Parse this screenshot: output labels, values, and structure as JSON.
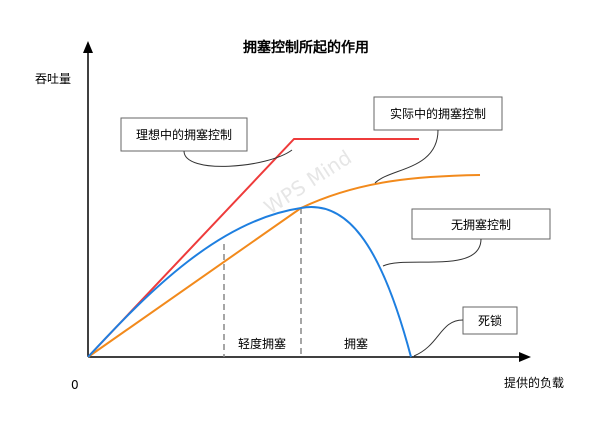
{
  "title": "拥塞控制所起的作用",
  "axes": {
    "y_label": "吞吐量",
    "x_label": "提供的负载",
    "origin_label": "0"
  },
  "callouts": {
    "ideal": "理想中的拥塞控制",
    "actual": "实际中的拥塞控制",
    "none": "无拥塞控制",
    "deadlock": "死锁"
  },
  "regions": {
    "light": "轻度拥塞",
    "congested": "拥塞"
  },
  "watermark": "WPS Mind",
  "colors": {
    "ideal": "#ee3b3b",
    "actual": "#f28a1c",
    "none": "#1e7fe0",
    "axis": "#000000",
    "guide": "#888888"
  }
}
